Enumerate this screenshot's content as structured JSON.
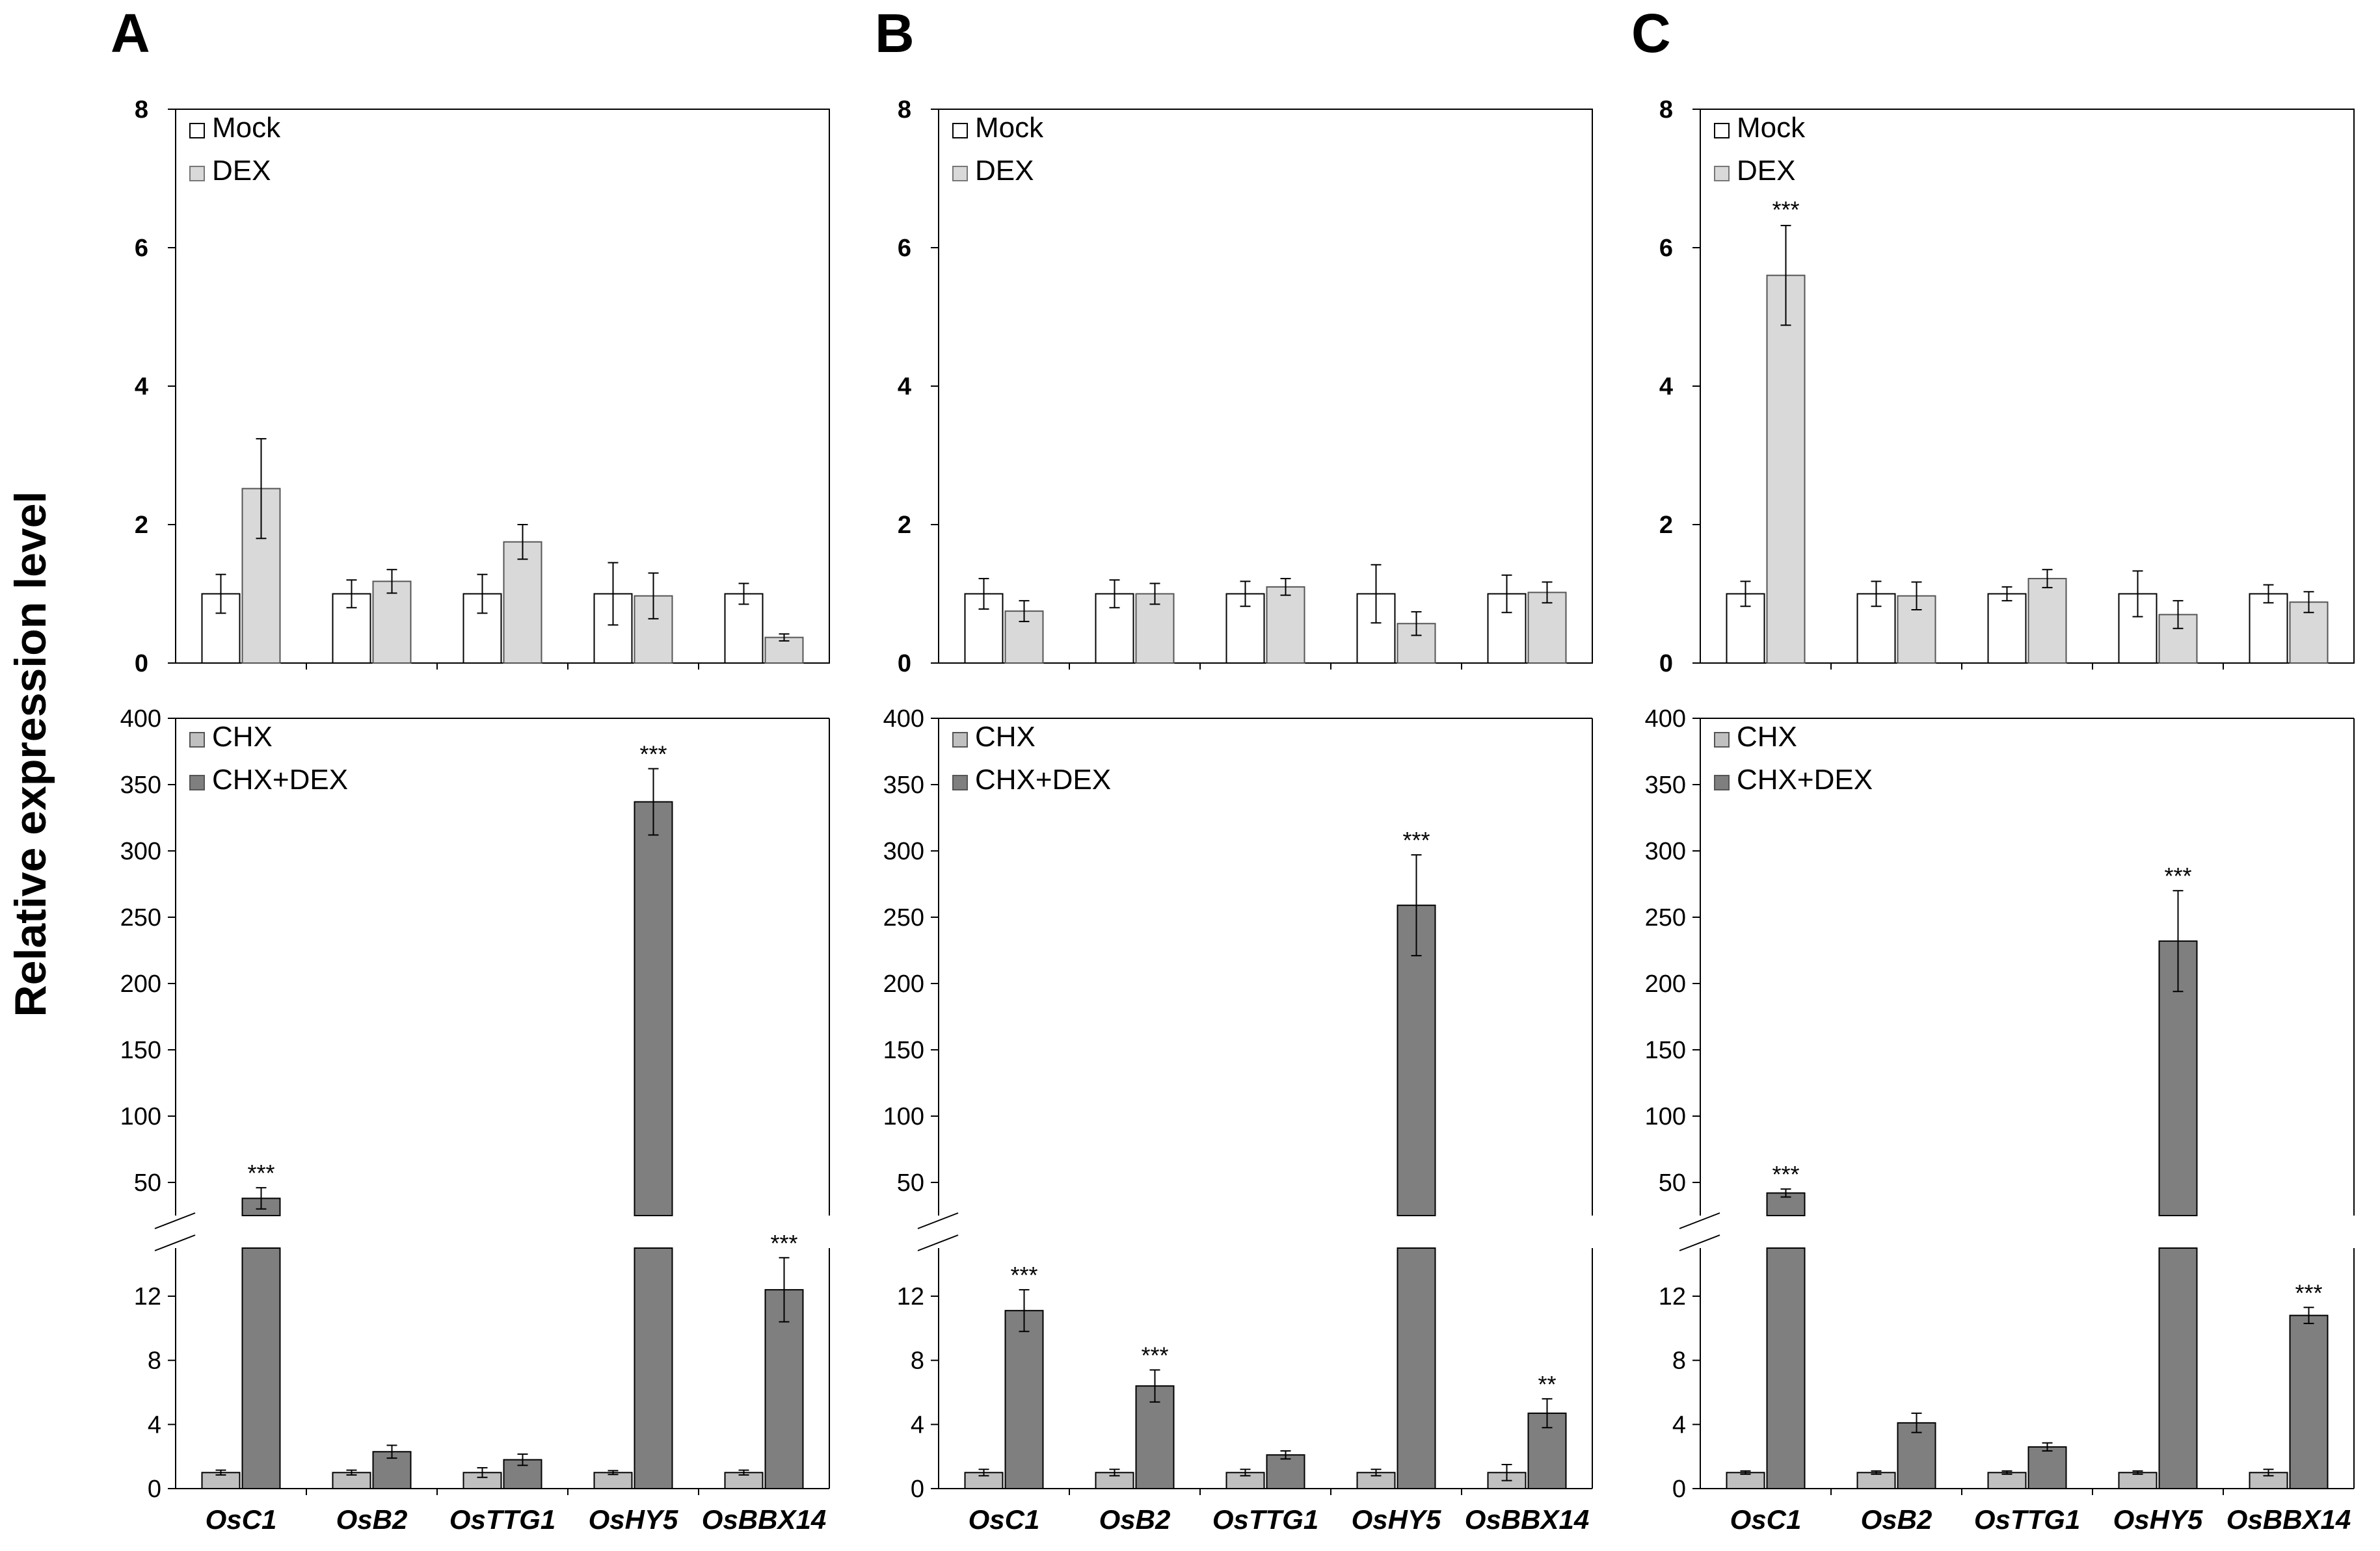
{
  "figure": {
    "ylabel": "Relative expression level",
    "genes": [
      "OsC1",
      "OsB2",
      "OsTTG1",
      "OsHY5",
      "OsBBX14"
    ],
    "colors": {
      "mock": "#ffffff",
      "dex": "#d9d9d9",
      "chx": "#c0c0c0",
      "chxdex": "#7f7f7f",
      "axis": "#000000"
    }
  },
  "chart_data": [
    {
      "panel": "A",
      "type": "bar",
      "title": "A",
      "ylim": [
        0,
        8
      ],
      "yticks": [
        "0",
        "2",
        "4",
        "6",
        "8"
      ],
      "categories": [
        "OsC1",
        "OsB2",
        "OsTTG1",
        "OsHY5",
        "OsBBX14"
      ],
      "series": [
        {
          "name": "Mock",
          "values": [
            1.0,
            1.0,
            1.0,
            1.0,
            1.0
          ],
          "errors": [
            0.28,
            0.2,
            0.28,
            0.45,
            0.15
          ]
        },
        {
          "name": "DEX",
          "values": [
            2.52,
            1.18,
            1.75,
            0.97,
            0.37
          ],
          "errors": [
            0.72,
            0.17,
            0.25,
            0.33,
            0.05
          ]
        }
      ],
      "stars": [
        "",
        "",
        "",
        "",
        ""
      ]
    },
    {
      "panel": "B",
      "type": "bar",
      "title": "B",
      "ylim": [
        0,
        8
      ],
      "yticks": [
        "0",
        "2",
        "4",
        "6",
        "8"
      ],
      "categories": [
        "OsC1",
        "OsB2",
        "OsTTG1",
        "OsHY5",
        "OsBBX14"
      ],
      "series": [
        {
          "name": "Mock",
          "values": [
            1.0,
            1.0,
            1.0,
            1.0,
            1.0
          ],
          "errors": [
            0.22,
            0.2,
            0.18,
            0.42,
            0.27
          ]
        },
        {
          "name": "DEX",
          "values": [
            0.75,
            1.0,
            1.1,
            0.57,
            1.02
          ],
          "errors": [
            0.15,
            0.15,
            0.12,
            0.17,
            0.15
          ]
        }
      ],
      "stars": [
        "",
        "",
        "",
        "",
        ""
      ]
    },
    {
      "panel": "C",
      "type": "bar",
      "title": "C",
      "ylim": [
        0,
        8
      ],
      "yticks": [
        "0",
        "2",
        "4",
        "6",
        "8"
      ],
      "categories": [
        "OsC1",
        "OsB2",
        "OsTTG1",
        "OsHY5",
        "OsBBX14"
      ],
      "series": [
        {
          "name": "Mock",
          "values": [
            1.0,
            1.0,
            1.0,
            1.0,
            1.0
          ],
          "errors": [
            0.18,
            0.18,
            0.1,
            0.33,
            0.13
          ]
        },
        {
          "name": "DEX",
          "values": [
            5.6,
            0.97,
            1.22,
            0.7,
            0.88
          ],
          "errors": [
            0.72,
            0.2,
            0.13,
            0.2,
            0.15
          ]
        }
      ],
      "stars": [
        "***",
        "",
        "",
        "",
        ""
      ]
    },
    {
      "panel": "A",
      "type": "bar",
      "title": "",
      "yticks_upper": [
        "50",
        "100",
        "150",
        "200",
        "250",
        "300",
        "350",
        "400"
      ],
      "yticks_lower": [
        "0",
        "4",
        "8",
        "12"
      ],
      "categories": [
        "OsC1",
        "OsB2",
        "OsTTG1",
        "OsHY5",
        "OsBBX14"
      ],
      "series": [
        {
          "name": "CHX",
          "values": [
            1.0,
            1.0,
            1.0,
            1.0,
            1.0
          ],
          "errors": [
            0.15,
            0.15,
            0.3,
            0.12,
            0.15
          ]
        },
        {
          "name": "CHX+DEX",
          "values": [
            38,
            2.3,
            1.8,
            337,
            12.4
          ],
          "errors": [
            8,
            0.4,
            0.35,
            25,
            2.0
          ]
        }
      ],
      "stars": [
        "***",
        "",
        "",
        "***",
        "***"
      ]
    },
    {
      "panel": "B",
      "type": "bar",
      "title": "",
      "yticks_upper": [
        "50",
        "100",
        "150",
        "200",
        "250",
        "300",
        "350",
        "400"
      ],
      "yticks_lower": [
        "0",
        "4",
        "8",
        "12"
      ],
      "categories": [
        "OsC1",
        "OsB2",
        "OsTTG1",
        "OsHY5",
        "OsBBX14"
      ],
      "series": [
        {
          "name": "CHX",
          "values": [
            1.0,
            1.0,
            1.0,
            1.0,
            1.0
          ],
          "errors": [
            0.2,
            0.2,
            0.2,
            0.2,
            0.5
          ]
        },
        {
          "name": "CHX+DEX",
          "values": [
            11.1,
            6.4,
            2.1,
            259,
            4.7
          ],
          "errors": [
            1.3,
            1.0,
            0.25,
            38,
            0.9
          ]
        }
      ],
      "stars": [
        "***",
        "***",
        "",
        "***",
        "**"
      ]
    },
    {
      "panel": "C",
      "type": "bar",
      "title": "",
      "yticks_upper": [
        "50",
        "100",
        "150",
        "200",
        "250",
        "300",
        "350",
        "400"
      ],
      "yticks_lower": [
        "0",
        "4",
        "8",
        "12"
      ],
      "categories": [
        "OsC1",
        "OsB2",
        "OsTTG1",
        "OsHY5",
        "OsBBX14"
      ],
      "series": [
        {
          "name": "CHX",
          "values": [
            1.0,
            1.0,
            1.0,
            1.0,
            1.0
          ],
          "errors": [
            0.1,
            0.1,
            0.1,
            0.1,
            0.2
          ]
        },
        {
          "name": "CHX+DEX",
          "values": [
            42,
            4.1,
            2.6,
            232,
            10.8
          ],
          "errors": [
            3,
            0.6,
            0.25,
            38,
            0.5
          ]
        }
      ],
      "stars": [
        "***",
        "",
        "",
        "***",
        "***"
      ]
    }
  ]
}
